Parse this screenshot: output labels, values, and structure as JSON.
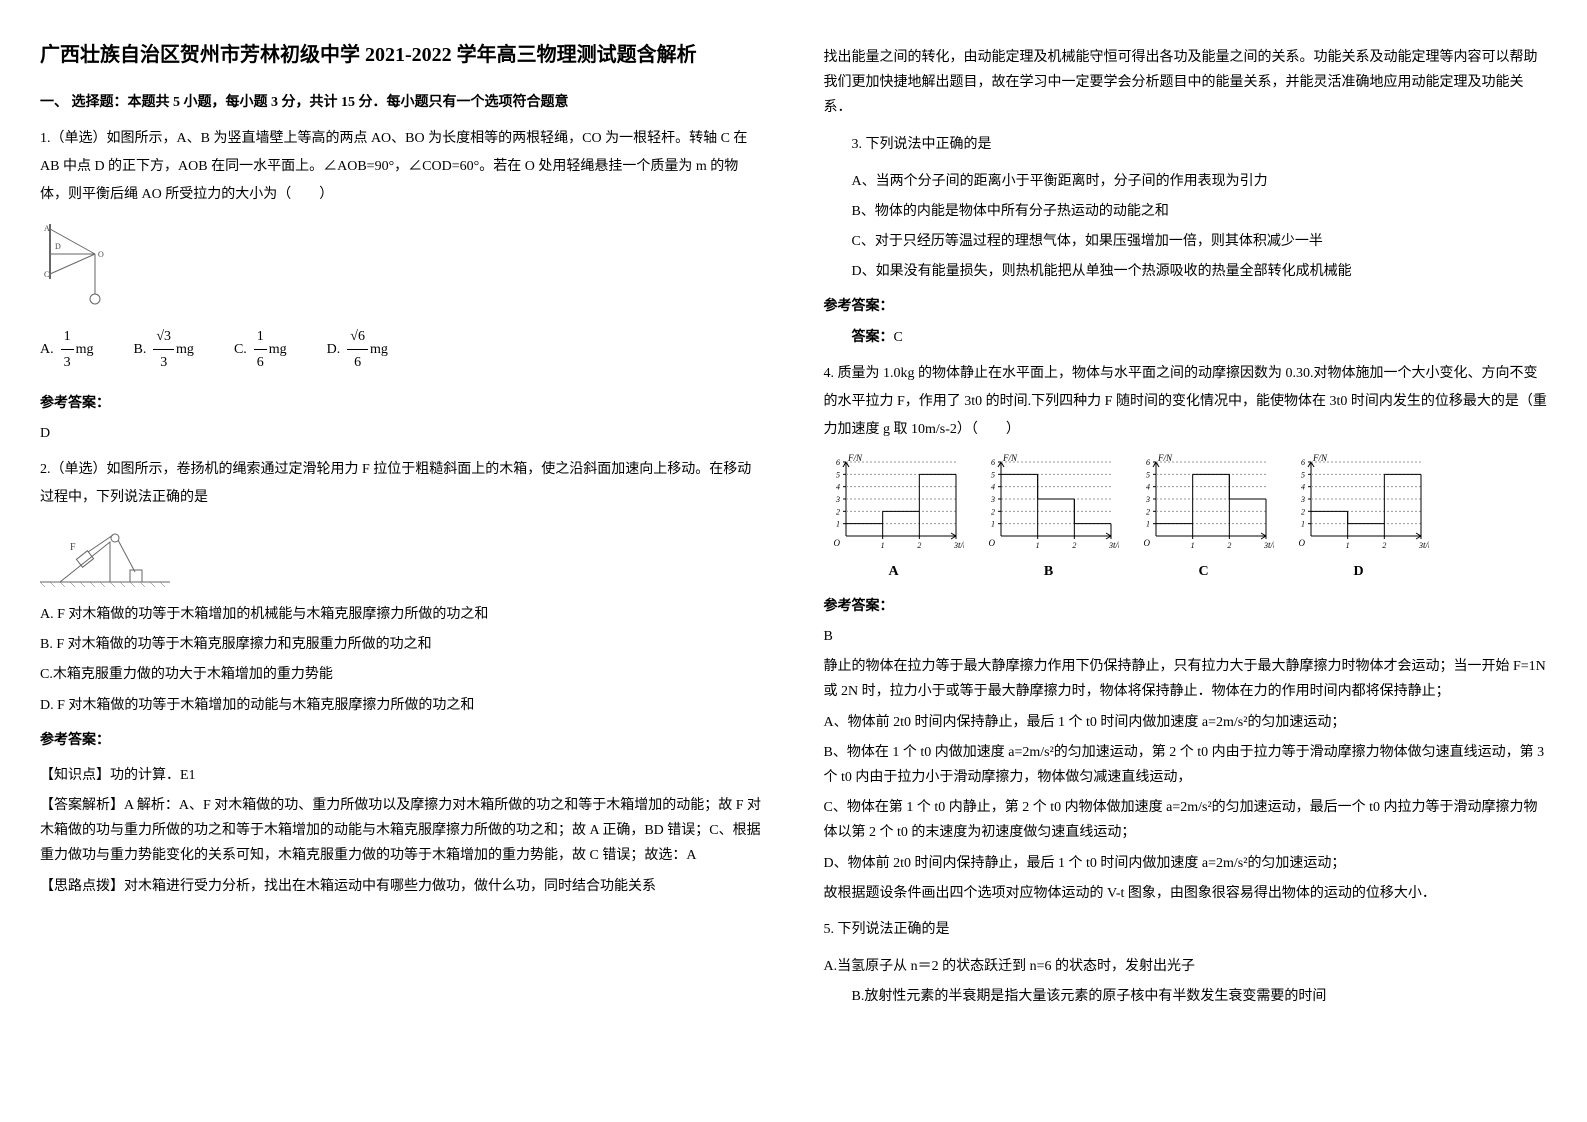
{
  "title": "广西壮族自治区贺州市芳林初级中学 2021-2022 学年高三物理测试题含解析",
  "section1_title": "一、 选择题：本题共 5 小题，每小题 3 分，共计 15 分．每小题只有一个选项符合题意",
  "q1": {
    "text": "1.（单选）如图所示，A、B 为竖直墙壁上等高的两点 AO、BO 为长度相等的两根轻绳，CO 为一根轻杆。转轴 C 在 AB 中点 D 的正下方，AOB 在同一水平面上。∠AOB=90°，∠COD=60°。若在 O 处用轻绳悬挂一个质量为 m 的物体，则平衡后绳 AO 所受拉力的大小为（　　）",
    "optA_label": "A.",
    "optA_num": "1",
    "optA_den": "3",
    "optA_suffix": "mg",
    "optB_label": "B.",
    "optB_num": "√3",
    "optB_den": "3",
    "optB_suffix": "mg",
    "optC_label": "C.",
    "optC_num": "1",
    "optC_den": "6",
    "optC_suffix": "mg",
    "optD_label": "D.",
    "optD_num": "√6",
    "optD_den": "6",
    "optD_suffix": "mg",
    "answer_label": "参考答案：",
    "answer": "D"
  },
  "q2": {
    "text": "2.（单选）如图所示，卷扬机的绳索通过定滑轮用力 F 拉位于粗糙斜面上的木箱，使之沿斜面加速向上移动。在移动过程中，下列说法正确的是",
    "optA": "A. F 对木箱做的功等于木箱增加的机械能与木箱克服摩擦力所做的功之和",
    "optB": "B. F 对木箱做的功等于木箱克服摩擦力和克服重力所做的功之和",
    "optC": "C.木箱克服重力做的功大于木箱增加的重力势能",
    "optD": "D. F 对木箱做的功等于木箱增加的动能与木箱克服摩擦力所做的功之和",
    "answer_label": "参考答案：",
    "knowledge_label": "【知识点】功的计算．E1",
    "analysis_label": "【答案解析】A 解析：A、F 对木箱做的功、重力所做功以及摩擦力对木箱所做的功之和等于木箱增加的动能；故 F 对木箱做的功与重力所做的功之和等于木箱增加的动能与木箱克服摩擦力所做的功之和；故 A 正确，BD 错误；C、根据重力做功与重力势能变化的关系可知，木箱克服重力做的功等于木箱增加的重力势能，故 C 错误；故选：A",
    "thought_label": "【思路点拨】对木箱进行受力分析，找出在木箱运动中有哪些力做功，做什么功，同时结合功能关系"
  },
  "col2_intro": "找出能量之间的转化，由动能定理及机械能守恒可得出各功及能量之间的关系。功能关系及动能定理等内容可以帮助我们更加快捷地解出题目，故在学习中一定要学会分析题目中的能量关系，并能灵活准确地应用动能定理及功能关系．",
  "q3": {
    "text": "3. 下列说法中正确的是",
    "optA": "A、当两个分子间的距离小于平衡距离时，分子间的作用表现为引力",
    "optB": "B、物体的内能是物体中所有分子热运动的动能之和",
    "optC": "C、对于只经历等温过程的理想气体，如果压强增加一倍，则其体积减少一半",
    "optD": "D、如果没有能量损失，则热机能把从单独一个热源吸收的热量全部转化成机械能",
    "answer_label": "参考答案：",
    "answer_prefix": "答案：",
    "answer": "C"
  },
  "q4": {
    "text": "4. 质量为 1.0kg 的物体静止在水平面上，物体与水平面之间的动摩擦因数为 0.30.对物体施加一个大小变化、方向不变的水平拉力 F，作用了 3t0 的时间.下列四种力 F 随时间的变化情况中，能使物体在 3t0 时间内发生的位移最大的是（重力加速度 g 取 10m/s-2）（　　）",
    "answer_label": "参考答案：",
    "answer": "B",
    "analysis": "静止的物体在拉力等于最大静摩擦力作用下仍保持静止，只有拉力大于最大静摩擦力时物体才会运动；当一开始 F=1N 或 2N 时，拉力小于或等于最大静摩擦力时，物体将保持静止．物体在力的作用时间内都将保持静止；",
    "optA_text": "A、物体前 2t0 时间内保持静止，最后 1 个 t0 时间内做加速度 a=2",
    "optA_unit": "m/s²",
    "optA_suffix": "的匀加速运动；",
    "optB_text": "B、物体在 1 个 t0 内做加速度 a=2",
    "optB_unit": "m/s²",
    "optB_suffix": "的匀加速运动，第 2 个 t0 内由于拉力等于滑动摩擦力物体做匀速直线运动，第 3 个 t0 内由于拉力小于滑动摩擦力，物体做匀减速直线运动，",
    "optC_text": "C、物体在第 1 个 t0 内静止，第 2 个 t0 内物体做加速度 a=2",
    "optC_unit": "m/s²",
    "optC_suffix": "的匀加速运动，最后一个 t0 内拉力等于滑动摩擦力物体以第 2 个 t0 的末速度为初速度做匀速直线运动；",
    "optD_text": "D、物体前 2t0 时间内保持静止，最后 1 个 t0 时间内做加速度 a=2",
    "optD_unit": "m/s²",
    "optD_suffix": "的匀加速运动；",
    "conclusion": "故根据题设条件画出四个选项对应物体运动的 V-t 图象，由图象很容易得出物体的运动的位移大小．",
    "charts": {
      "xlabel": "t/t₀",
      "ylabel": "F/N",
      "xticks": [
        1,
        2,
        3
      ],
      "yticks": [
        1,
        2,
        3,
        4,
        5,
        6
      ],
      "axis_color": "#000000",
      "line_color": "#000000",
      "dashed_color": "#999999",
      "width": 140,
      "height": 100,
      "A": {
        "label": "A",
        "bars": [
          [
            0,
            1,
            1
          ],
          [
            1,
            2,
            2
          ],
          [
            2,
            3,
            5
          ]
        ]
      },
      "B": {
        "label": "B",
        "bars": [
          [
            0,
            1,
            5
          ],
          [
            1,
            2,
            3
          ],
          [
            2,
            3,
            1
          ]
        ]
      },
      "C": {
        "label": "C",
        "bars": [
          [
            0,
            1,
            1
          ],
          [
            1,
            2,
            5
          ],
          [
            2,
            3,
            3
          ]
        ]
      },
      "D": {
        "label": "D",
        "bars": [
          [
            0,
            1,
            2
          ],
          [
            1,
            2,
            1
          ],
          [
            2,
            3,
            5
          ]
        ]
      }
    }
  },
  "q5": {
    "text": "5. 下列说法正确的是",
    "optA": "A.当氢原子从 n＝2 的状态跃迁到 n=6 的状态时，发射出光子",
    "optB": "B.放射性元素的半衰期是指大量该元素的原子核中有半数发生衰变需要的时间"
  }
}
